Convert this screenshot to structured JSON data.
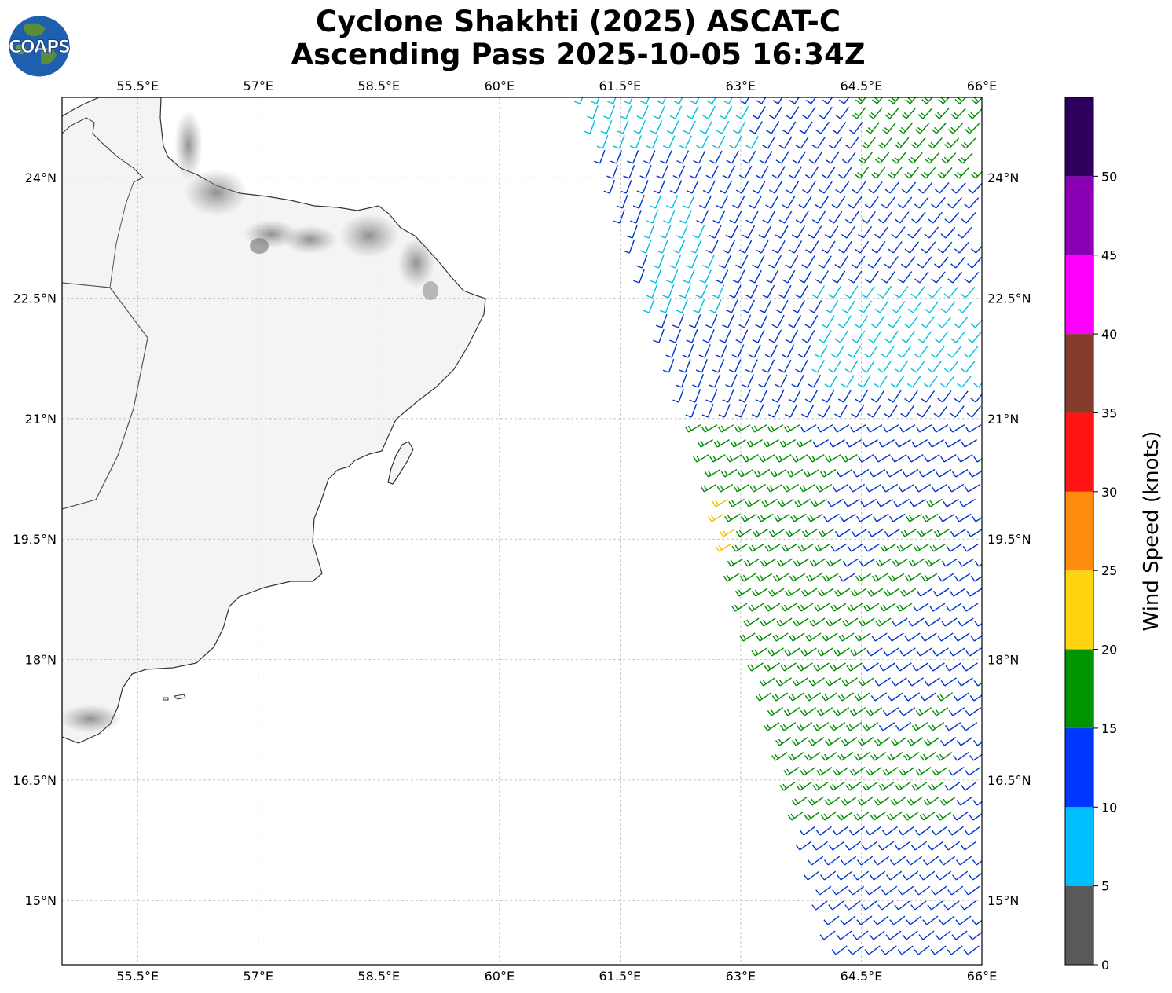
{
  "header": {
    "title_line1": "Cyclone Shakhti (2025) ASCAT-C",
    "title_line2": "Ascending Pass 2025-10-05 16:34Z",
    "logo_text": "COAPS"
  },
  "map": {
    "lon_ticks": [
      "55.5°E",
      "57°E",
      "58.5°E",
      "60°E",
      "61.5°E",
      "63°E",
      "64.5°E",
      "66°E"
    ],
    "lat_ticks": [
      "24°N",
      "22.5°N",
      "21°N",
      "19.5°N",
      "18°N",
      "16.5°N",
      "15°N"
    ],
    "lon_values": [
      55.5,
      57,
      58.5,
      60,
      61.5,
      63,
      64.5,
      66
    ],
    "lat_values": [
      24,
      22.5,
      21,
      19.5,
      18,
      16.5,
      15
    ],
    "extent": {
      "lon_min": 54.56,
      "lon_max": 66.0,
      "lat_min": 14.2,
      "lat_max": 25.0
    },
    "land_color": "#f4f4f4",
    "coast_color": "#333333",
    "mountain_color": "#8a8a8a"
  },
  "colorbar": {
    "label": "Wind Speed (knots)",
    "tick_labels": [
      "0",
      "5",
      "10",
      "15",
      "20",
      "25",
      "30",
      "35",
      "40",
      "45",
      "50"
    ],
    "bins": [
      {
        "min": 0,
        "max": 5,
        "color": "#595959"
      },
      {
        "min": 5,
        "max": 10,
        "color": "#00bfff"
      },
      {
        "min": 10,
        "max": 15,
        "color": "#0037ff"
      },
      {
        "min": 15,
        "max": 20,
        "color": "#009400"
      },
      {
        "min": 20,
        "max": 25,
        "color": "#ffd30f"
      },
      {
        "min": 25,
        "max": 30,
        "color": "#ff8c0f"
      },
      {
        "min": 30,
        "max": 35,
        "color": "#ff1414"
      },
      {
        "min": 35,
        "max": 40,
        "color": "#843b2b"
      },
      {
        "min": 40,
        "max": 45,
        "color": "#ff00ff"
      },
      {
        "min": 45,
        "max": 50,
        "color": "#8b00b4"
      },
      {
        "min": 50,
        "max": 55,
        "color": "#2d005e"
      }
    ]
  },
  "barb_colors": {
    "cyan": "#00bfdf",
    "blue": "#0033cc",
    "green": "#008c00",
    "yellow": "#f2c200"
  }
}
